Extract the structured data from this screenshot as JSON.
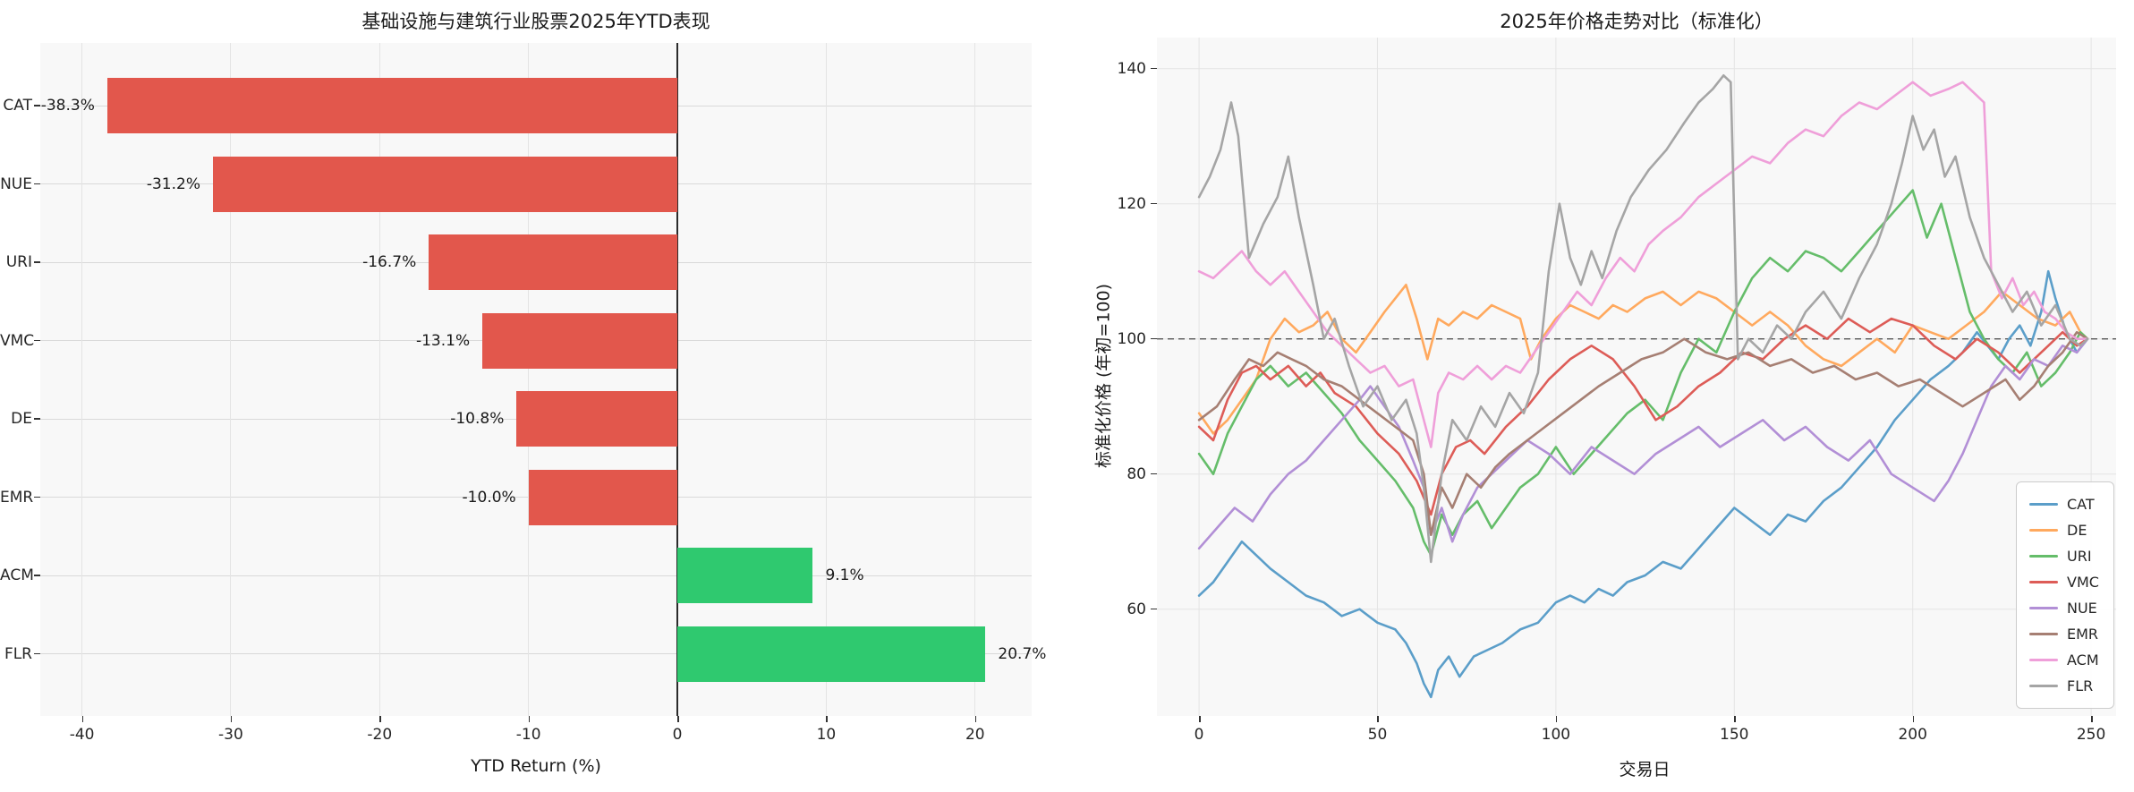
{
  "figure_background": "#ffffff",
  "chart_data": [
    {
      "type": "bar",
      "orientation": "horizontal",
      "title": "基础设施与建筑行业股票2025年YTD表现",
      "xlabel": "YTD Return (%)",
      "categories": [
        "CAT",
        "NUE",
        "URI",
        "VMC",
        "DE",
        "EMR",
        "ACM",
        "FLR"
      ],
      "values": [
        -38.3,
        -31.2,
        -16.7,
        -13.1,
        -10.8,
        -10.0,
        9.1,
        20.7
      ],
      "value_labels": [
        "-38.3%",
        "-31.2%",
        "-16.7%",
        "-13.1%",
        "-10.8%",
        "-10.0%",
        "9.1%",
        "20.7%"
      ],
      "xticks": [
        -40,
        -30,
        -20,
        -10,
        0,
        10,
        20
      ],
      "xlim": [
        -42.8,
        23.8
      ],
      "negative_color": "#e2574c",
      "positive_color": "#2fc96f",
      "grid": true,
      "zero_line_color": "#2b2b2b"
    },
    {
      "type": "line",
      "title": "2025年价格走势对比（标准化）",
      "xlabel": "交易日",
      "ylabel": "标准化价格 (年初=100)",
      "xticks": [
        0,
        50,
        100,
        150,
        200,
        250
      ],
      "yticks": [
        60,
        80,
        100,
        120,
        140
      ],
      "xlim": [
        -11.8,
        257
      ],
      "ylim": [
        44.2,
        144.6
      ],
      "grid": true,
      "reference_line": {
        "y": 100,
        "style": "dashed",
        "color": "#555555"
      },
      "legend_position": "lower-right",
      "series": [
        {
          "name": "CAT",
          "color": "#5b9ec9",
          "x": [
            0,
            4,
            8,
            12,
            16,
            20,
            25,
            30,
            35,
            40,
            45,
            50,
            55,
            58,
            61,
            63,
            65,
            67,
            70,
            73,
            77,
            81,
            85,
            90,
            95,
            100,
            104,
            108,
            112,
            116,
            120,
            125,
            130,
            135,
            140,
            145,
            150,
            155,
            160,
            165,
            170,
            175,
            180,
            185,
            190,
            195,
            200,
            205,
            210,
            214,
            218,
            221,
            224,
            227,
            230,
            233,
            236,
            238,
            240,
            243,
            246,
            249
          ],
          "y": [
            62,
            64,
            67,
            70,
            68,
            66,
            64,
            62,
            61,
            59,
            60,
            58,
            57,
            55,
            52,
            49,
            47,
            51,
            53,
            50,
            53,
            54,
            55,
            57,
            58,
            61,
            62,
            61,
            63,
            62,
            64,
            65,
            67,
            66,
            69,
            72,
            75,
            73,
            71,
            74,
            73,
            76,
            78,
            81,
            84,
            88,
            91,
            94,
            96,
            98,
            101,
            99,
            97,
            100,
            102,
            99,
            104,
            110,
            106,
            101,
            98,
            100
          ]
        },
        {
          "name": "DE",
          "color": "#ffa95e",
          "x": [
            0,
            4,
            8,
            12,
            16,
            20,
            24,
            28,
            32,
            36,
            40,
            44,
            48,
            52,
            55,
            58,
            61,
            64,
            67,
            70,
            74,
            78,
            82,
            86,
            90,
            93,
            96,
            100,
            104,
            108,
            112,
            116,
            120,
            125,
            130,
            135,
            140,
            145,
            150,
            155,
            160,
            165,
            170,
            175,
            180,
            185,
            190,
            195,
            200,
            205,
            210,
            215,
            220,
            225,
            230,
            235,
            240,
            244,
            247,
            249
          ],
          "y": [
            89,
            86,
            88,
            91,
            94,
            100,
            103,
            101,
            102,
            104,
            100,
            98,
            101,
            104,
            106,
            108,
            103,
            97,
            103,
            102,
            104,
            103,
            105,
            104,
            103,
            97,
            100,
            103,
            105,
            104,
            103,
            105,
            104,
            106,
            107,
            105,
            107,
            106,
            104,
            102,
            104,
            102,
            99,
            97,
            96,
            98,
            100,
            98,
            102,
            101,
            100,
            102,
            104,
            107,
            105,
            103,
            102,
            104,
            101,
            100
          ]
        },
        {
          "name": "URI",
          "color": "#65bd6a",
          "x": [
            0,
            4,
            8,
            12,
            16,
            20,
            25,
            30,
            35,
            40,
            45,
            50,
            55,
            60,
            63,
            65,
            68,
            71,
            74,
            78,
            82,
            86,
            90,
            95,
            100,
            105,
            110,
            115,
            120,
            125,
            130,
            135,
            140,
            145,
            150,
            155,
            160,
            165,
            170,
            175,
            180,
            185,
            190,
            195,
            200,
            204,
            208,
            212,
            216,
            220,
            224,
            228,
            232,
            236,
            240,
            244,
            247,
            249
          ],
          "y": [
            83,
            80,
            86,
            90,
            94,
            96,
            93,
            95,
            92,
            89,
            85,
            82,
            79,
            75,
            70,
            68,
            74,
            71,
            74,
            76,
            72,
            75,
            78,
            80,
            84,
            80,
            83,
            86,
            89,
            91,
            88,
            95,
            100,
            98,
            104,
            109,
            112,
            110,
            113,
            112,
            110,
            113,
            116,
            119,
            122,
            115,
            120,
            112,
            104,
            100,
            97,
            95,
            98,
            93,
            95,
            98,
            101,
            100
          ]
        },
        {
          "name": "VMC",
          "color": "#dd5c57",
          "x": [
            0,
            4,
            8,
            12,
            16,
            20,
            25,
            30,
            34,
            38,
            44,
            50,
            56,
            61,
            65,
            68,
            72,
            76,
            80,
            86,
            92,
            98,
            104,
            110,
            116,
            122,
            128,
            134,
            140,
            146,
            152,
            158,
            164,
            170,
            176,
            182,
            188,
            194,
            200,
            206,
            212,
            218,
            224,
            230,
            236,
            242,
            246,
            249
          ],
          "y": [
            87,
            85,
            91,
            95,
            96,
            94,
            96,
            93,
            95,
            92,
            90,
            86,
            83,
            79,
            74,
            80,
            84,
            85,
            83,
            87,
            90,
            94,
            97,
            99,
            97,
            93,
            88,
            90,
            93,
            95,
            98,
            97,
            100,
            102,
            100,
            103,
            101,
            103,
            102,
            99,
            97,
            100,
            98,
            95,
            98,
            101,
            99,
            100
          ]
        },
        {
          "name": "NUE",
          "color": "#b28fd6",
          "x": [
            0,
            5,
            10,
            15,
            20,
            25,
            30,
            35,
            40,
            45,
            48,
            52,
            56,
            60,
            63,
            65,
            68,
            71,
            74,
            78,
            82,
            88,
            92,
            98,
            104,
            110,
            116,
            122,
            128,
            134,
            140,
            146,
            152,
            158,
            164,
            170,
            176,
            182,
            188,
            194,
            200,
            206,
            210,
            214,
            218,
            222,
            226,
            230,
            234,
            238,
            242,
            246,
            249
          ],
          "y": [
            69,
            72,
            75,
            73,
            77,
            80,
            82,
            85,
            88,
            91,
            93,
            90,
            87,
            82,
            78,
            71,
            75,
            70,
            74,
            78,
            80,
            83,
            85,
            83,
            80,
            84,
            82,
            80,
            83,
            85,
            87,
            84,
            86,
            88,
            85,
            87,
            84,
            82,
            85,
            80,
            78,
            76,
            79,
            83,
            88,
            93,
            96,
            94,
            97,
            96,
            99,
            98,
            100
          ]
        },
        {
          "name": "EMR",
          "color": "#a67f73",
          "x": [
            0,
            5,
            10,
            14,
            18,
            22,
            26,
            30,
            35,
            40,
            45,
            50,
            55,
            60,
            63,
            65,
            68,
            71,
            75,
            79,
            83,
            87,
            92,
            97,
            102,
            107,
            112,
            118,
            124,
            130,
            136,
            142,
            148,
            154,
            160,
            166,
            172,
            178,
            184,
            190,
            196,
            202,
            208,
            214,
            220,
            226,
            230,
            234,
            238,
            242,
            246,
            249
          ],
          "y": [
            88,
            90,
            94,
            97,
            96,
            98,
            97,
            96,
            94,
            93,
            91,
            89,
            87,
            85,
            80,
            71,
            78,
            75,
            80,
            78,
            81,
            83,
            85,
            87,
            89,
            91,
            93,
            95,
            97,
            98,
            100,
            98,
            97,
            98,
            96,
            97,
            95,
            96,
            94,
            95,
            93,
            94,
            92,
            90,
            92,
            94,
            91,
            93,
            96,
            98,
            101,
            100
          ]
        },
        {
          "name": "ACM",
          "color": "#ef9fd9",
          "x": [
            0,
            4,
            8,
            12,
            16,
            20,
            24,
            28,
            32,
            36,
            40,
            44,
            48,
            52,
            56,
            60,
            63,
            65,
            67,
            70,
            74,
            78,
            82,
            86,
            90,
            94,
            98,
            102,
            106,
            110,
            114,
            118,
            122,
            126,
            130,
            135,
            140,
            145,
            150,
            155,
            160,
            165,
            170,
            175,
            180,
            185,
            190,
            195,
            200,
            205,
            210,
            214,
            218,
            220,
            222,
            225,
            228,
            231,
            234,
            237,
            240,
            243,
            246,
            249
          ],
          "y": [
            110,
            109,
            111,
            113,
            110,
            108,
            110,
            107,
            104,
            101,
            99,
            97,
            95,
            96,
            93,
            94,
            88,
            84,
            92,
            95,
            94,
            96,
            94,
            96,
            95,
            98,
            101,
            104,
            107,
            105,
            109,
            112,
            110,
            114,
            116,
            118,
            121,
            123,
            125,
            127,
            126,
            129,
            131,
            130,
            133,
            135,
            134,
            136,
            138,
            136,
            137,
            138,
            136,
            135,
            110,
            106,
            109,
            105,
            107,
            104,
            103,
            101,
            100,
            100
          ]
        },
        {
          "name": "FLR",
          "color": "#a5a5a5",
          "x": [
            0,
            3,
            6,
            9,
            11,
            14,
            18,
            22,
            25,
            28,
            32,
            35,
            38,
            42,
            46,
            50,
            54,
            58,
            61,
            63,
            65,
            68,
            71,
            75,
            79,
            83,
            87,
            91,
            95,
            98,
            101,
            104,
            107,
            110,
            113,
            117,
            121,
            126,
            131,
            136,
            140,
            144,
            147,
            149,
            151,
            154,
            158,
            162,
            166,
            170,
            175,
            180,
            185,
            190,
            194,
            197,
            200,
            203,
            206,
            209,
            212,
            216,
            220,
            224,
            228,
            232,
            236,
            240,
            244,
            247,
            249
          ],
          "y": [
            121,
            124,
            128,
            135,
            130,
            112,
            117,
            121,
            127,
            118,
            108,
            100,
            103,
            96,
            90,
            93,
            88,
            91,
            86,
            78,
            67,
            80,
            88,
            85,
            90,
            87,
            92,
            89,
            95,
            110,
            120,
            112,
            108,
            113,
            109,
            116,
            121,
            125,
            128,
            132,
            135,
            137,
            139,
            138,
            97,
            100,
            98,
            102,
            100,
            104,
            107,
            103,
            109,
            114,
            120,
            126,
            133,
            128,
            131,
            124,
            127,
            118,
            112,
            108,
            104,
            107,
            102,
            105,
            100,
            99,
            100
          ]
        }
      ]
    }
  ]
}
